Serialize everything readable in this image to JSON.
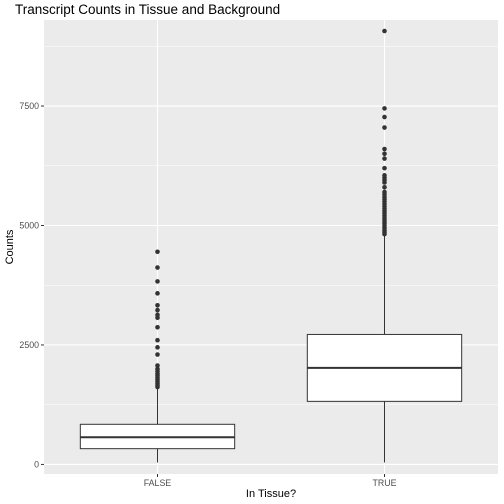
{
  "colors": {
    "panel_bg": "#ebebeb",
    "grid_major": "#ffffff",
    "box_fill": "#ffffff",
    "box_line": "#333333",
    "outlier": "#333333",
    "tick_text": "#4d4d4d"
  },
  "chart_data": {
    "type": "boxplot",
    "title": "Transcript Counts in Tissue and Background",
    "xlabel": "In Tissue?",
    "ylabel": "Counts",
    "categories": [
      "FALSE",
      "TRUE"
    ],
    "ylim": [
      -200,
      9300
    ],
    "yticks": [
      0,
      2500,
      5000,
      7500
    ],
    "ytick_labels": [
      "0",
      "2500",
      "5000",
      "7500"
    ],
    "grid": true,
    "boxes": [
      {
        "category": "FALSE",
        "whisker_low": 40,
        "q1": 330,
        "median": 570,
        "q3": 840,
        "whisker_high": 1580,
        "outliers": [
          1620,
          1660,
          1700,
          1740,
          1780,
          1820,
          1860,
          1900,
          1950,
          2000,
          2070,
          2300,
          2450,
          2600,
          2870,
          3070,
          3130,
          3230,
          3330,
          3580,
          3830,
          4120,
          4450
        ]
      },
      {
        "category": "TRUE",
        "whisker_low": 40,
        "q1": 1320,
        "median": 2020,
        "q3": 2720,
        "whisker_high": 4800,
        "outliers": [
          4820,
          4860,
          4900,
          4950,
          5000,
          5050,
          5100,
          5150,
          5200,
          5250,
          5300,
          5350,
          5400,
          5450,
          5500,
          5550,
          5600,
          5650,
          5700,
          5800,
          5900,
          5950,
          6000,
          6050,
          6200,
          6400,
          6500,
          6600,
          7050,
          7270,
          7450,
          9070
        ]
      }
    ]
  }
}
